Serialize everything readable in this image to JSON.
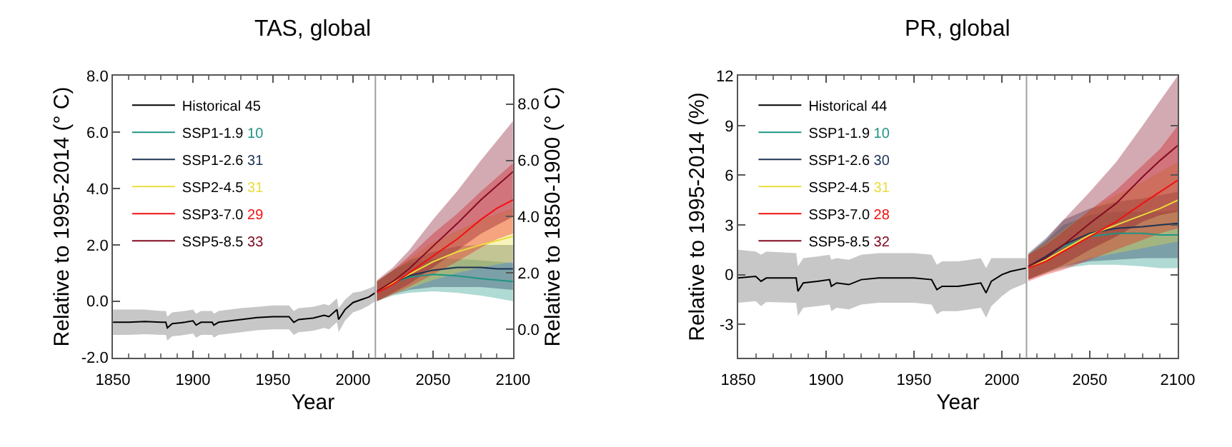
{
  "chart_data": [
    {
      "type": "line",
      "title": "TAS, global",
      "xlabel": "Year",
      "ylabel": "Relative to 1995-2014 (° C)",
      "y2label": "Relative to 1850-1900 (° C)",
      "xlim": [
        1850,
        2100
      ],
      "xticks": [
        1850,
        1900,
        1950,
        2000,
        2050,
        2100
      ],
      "ylim": [
        -2.0,
        8.0
      ],
      "yticks": [
        {
          "value": -2,
          "label": "-2.0"
        },
        {
          "value": 0,
          "label": "0.0"
        },
        {
          "value": 2,
          "label": "2.0"
        },
        {
          "value": 4,
          "label": "4.0"
        },
        {
          "value": 6,
          "label": "6.0"
        },
        {
          "value": 8,
          "label": "8.0"
        }
      ],
      "y2lim": [
        -1.0,
        9.0
      ],
      "y2ticks": [
        {
          "value": 0,
          "label": "0.0"
        },
        {
          "value": 2,
          "label": "2.0"
        },
        {
          "value": 4,
          "label": "4.0"
        },
        {
          "value": 6,
          "label": "6.0"
        },
        {
          "value": 8,
          "label": "8.0"
        }
      ],
      "legend": "top left",
      "annotations": [
        "45",
        "10",
        "31",
        "31",
        "29",
        "33"
      ],
      "ref_lines": [
        {
          "axis": "x",
          "value": 2014,
          "color": "#a0a0a0"
        }
      ],
      "series": [
        {
          "name": "Historical",
          "color": "#000000",
          "x": [
            1850,
            1860,
            1870,
            1880,
            1883,
            1884,
            1887,
            1895,
            1900,
            1902,
            1905,
            1912,
            1913,
            1916,
            1930,
            1940,
            1950,
            1960,
            1963,
            1966,
            1975,
            1982,
            1985,
            1990,
            1991,
            1995,
            2000,
            2005,
            2010,
            2014
          ],
          "values": [
            -0.75,
            -0.75,
            -0.72,
            -0.75,
            -0.75,
            -0.95,
            -0.8,
            -0.75,
            -0.7,
            -0.85,
            -0.75,
            -0.75,
            -0.85,
            -0.75,
            -0.65,
            -0.58,
            -0.55,
            -0.55,
            -0.75,
            -0.65,
            -0.6,
            -0.5,
            -0.55,
            -0.3,
            -0.65,
            -0.3,
            -0.05,
            0.05,
            0.15,
            0.3
          ],
          "lower": [
            -1.2,
            -1.2,
            -1.17,
            -1.2,
            -1.2,
            -1.4,
            -1.25,
            -1.2,
            -1.15,
            -1.3,
            -1.2,
            -1.2,
            -1.3,
            -1.2,
            -1.1,
            -1.03,
            -1.0,
            -1.0,
            -1.2,
            -1.1,
            -1.05,
            -0.95,
            -1.0,
            -0.75,
            -1.1,
            -0.7,
            -0.4,
            -0.3,
            -0.15,
            0.0
          ],
          "upper": [
            -0.3,
            -0.3,
            -0.3,
            -0.35,
            -0.35,
            -0.55,
            -0.4,
            -0.35,
            -0.3,
            -0.45,
            -0.35,
            -0.35,
            -0.45,
            -0.35,
            -0.25,
            -0.2,
            -0.15,
            -0.15,
            -0.35,
            -0.25,
            -0.2,
            -0.1,
            -0.15,
            0.1,
            -0.25,
            0.05,
            0.3,
            0.35,
            0.45,
            0.55
          ]
        },
        {
          "name": "SSP1-1.9",
          "color": "#1e9583",
          "x": [
            2015,
            2025,
            2035,
            2050,
            2065,
            2080,
            2090,
            2100
          ],
          "values": [
            0.35,
            0.65,
            0.85,
            0.95,
            0.9,
            0.8,
            0.75,
            0.7
          ],
          "lower": [
            0.0,
            0.2,
            0.3,
            0.35,
            0.3,
            0.2,
            0.1,
            0.0
          ],
          "upper": [
            0.7,
            1.1,
            1.35,
            1.5,
            1.5,
            1.45,
            1.4,
            1.35
          ]
        },
        {
          "name": "SSP1-2.6",
          "color": "#1d3354",
          "x": [
            2015,
            2025,
            2035,
            2050,
            2065,
            2080,
            2090,
            2100
          ],
          "values": [
            0.35,
            0.65,
            0.9,
            1.1,
            1.2,
            1.2,
            1.15,
            1.15
          ],
          "lower": [
            0.0,
            0.25,
            0.4,
            0.5,
            0.5,
            0.5,
            0.45,
            0.4
          ],
          "upper": [
            0.7,
            1.1,
            1.45,
            1.75,
            1.95,
            2.0,
            2.0,
            2.0
          ]
        },
        {
          "name": "SSP2-4.5",
          "color": "#eadd3d",
          "x": [
            2015,
            2025,
            2035,
            2050,
            2065,
            2080,
            2090,
            2100
          ],
          "values": [
            0.35,
            0.65,
            0.95,
            1.4,
            1.75,
            2.0,
            2.15,
            2.3
          ],
          "lower": [
            0.0,
            0.25,
            0.45,
            0.75,
            1.0,
            1.2,
            1.3,
            1.4
          ],
          "upper": [
            0.7,
            1.1,
            1.5,
            2.1,
            2.5,
            2.9,
            3.1,
            3.3
          ]
        },
        {
          "name": "SSP3-7.0",
          "color": "#f21111",
          "x": [
            2015,
            2025,
            2035,
            2050,
            2065,
            2080,
            2090,
            2100
          ],
          "values": [
            0.3,
            0.6,
            1.0,
            1.6,
            2.2,
            2.9,
            3.3,
            3.6
          ],
          "lower": [
            0.0,
            0.25,
            0.5,
            0.95,
            1.4,
            1.9,
            2.2,
            2.4
          ],
          "upper": [
            0.7,
            1.1,
            1.6,
            2.4,
            3.1,
            3.9,
            4.4,
            4.9
          ]
        },
        {
          "name": "SSP5-8.5",
          "color": "#840b22",
          "x": [
            2015,
            2025,
            2035,
            2050,
            2065,
            2080,
            2090,
            2100
          ],
          "values": [
            0.35,
            0.7,
            1.15,
            1.95,
            2.75,
            3.6,
            4.1,
            4.6
          ],
          "lower": [
            0.0,
            0.3,
            0.6,
            1.2,
            1.8,
            2.4,
            2.7,
            3.0
          ],
          "upper": [
            0.75,
            1.2,
            1.8,
            2.9,
            3.9,
            5.0,
            5.7,
            6.4
          ]
        }
      ]
    },
    {
      "type": "line",
      "title": "PR, global",
      "xlabel": "Year",
      "ylabel": "Relative to 1995-2014 (%)",
      "xlim": [
        1850,
        2100
      ],
      "xticks": [
        1850,
        1900,
        1950,
        2000,
        2050,
        2100
      ],
      "ylim": [
        -5,
        12
      ],
      "yticks": [
        -3,
        0,
        3,
        6,
        9,
        12
      ],
      "legend": "top left",
      "annotations": [
        "44",
        "10",
        "30",
        "31",
        "28",
        "32"
      ],
      "ref_lines": [
        {
          "axis": "x",
          "value": 2014,
          "color": "#a0a0a0"
        }
      ],
      "series": [
        {
          "name": "Historical",
          "color": "#000000",
          "x": [
            1850,
            1860,
            1863,
            1866,
            1883,
            1884,
            1887,
            1895,
            1902,
            1903,
            1906,
            1913,
            1920,
            1930,
            1950,
            1960,
            1963,
            1966,
            1975,
            1982,
            1988,
            1991,
            1994,
            2000,
            2005,
            2014
          ],
          "values": [
            -0.2,
            -0.1,
            -0.4,
            -0.2,
            -0.2,
            -1.0,
            -0.5,
            -0.4,
            -0.3,
            -0.7,
            -0.5,
            -0.6,
            -0.3,
            -0.2,
            -0.2,
            -0.3,
            -0.9,
            -0.7,
            -0.7,
            -0.6,
            -0.5,
            -1.1,
            -0.4,
            0.0,
            0.2,
            0.4
          ],
          "lower": [
            -1.7,
            -1.6,
            -1.9,
            -1.65,
            -1.7,
            -2.5,
            -2.0,
            -1.9,
            -1.8,
            -2.2,
            -2.0,
            -2.1,
            -1.8,
            -1.7,
            -1.7,
            -1.8,
            -2.4,
            -2.2,
            -2.2,
            -2.1,
            -2.0,
            -2.6,
            -1.9,
            -1.3,
            -0.9,
            -0.5
          ],
          "upper": [
            1.5,
            1.4,
            1.2,
            1.4,
            1.3,
            0.5,
            1.0,
            1.1,
            1.2,
            0.9,
            1.0,
            0.9,
            1.2,
            1.3,
            1.3,
            1.2,
            0.6,
            0.8,
            0.8,
            0.9,
            1.0,
            0.4,
            1.0,
            1.0,
            1.0,
            1.0
          ]
        },
        {
          "name": "SSP1-1.9",
          "color": "#1e9583",
          "x": [
            2015,
            2025,
            2035,
            2050,
            2065,
            2080,
            2090,
            2100
          ],
          "values": [
            0.4,
            1.0,
            1.7,
            2.3,
            2.5,
            2.5,
            2.4,
            2.4
          ],
          "lower": [
            -0.3,
            0.1,
            0.4,
            0.6,
            0.6,
            0.5,
            0.4,
            0.4
          ],
          "upper": [
            1.2,
            2.0,
            3.0,
            3.6,
            3.8,
            3.8,
            3.8,
            3.9
          ]
        },
        {
          "name": "SSP1-2.6",
          "color": "#1d3354",
          "x": [
            2015,
            2025,
            2035,
            2050,
            2065,
            2080,
            2090,
            2100
          ],
          "values": [
            0.5,
            1.1,
            1.8,
            2.5,
            2.8,
            2.9,
            3.0,
            3.1
          ],
          "lower": [
            -0.3,
            0.2,
            0.5,
            0.8,
            0.9,
            1.0,
            1.0,
            1.0
          ],
          "upper": [
            1.3,
            2.2,
            3.3,
            4.0,
            4.4,
            4.6,
            4.8,
            5.0
          ]
        },
        {
          "name": "SSP2-4.5",
          "color": "#eadd3d",
          "x": [
            2015,
            2025,
            2035,
            2050,
            2065,
            2080,
            2090,
            2100
          ],
          "values": [
            0.4,
            0.9,
            1.5,
            2.4,
            3.0,
            3.6,
            4.0,
            4.5
          ],
          "lower": [
            -0.3,
            0.1,
            0.5,
            1.0,
            1.3,
            1.6,
            1.8,
            2.0
          ],
          "upper": [
            1.2,
            1.9,
            2.7,
            3.9,
            4.8,
            5.6,
            6.2,
            6.8
          ]
        },
        {
          "name": "SSP3-7.0",
          "color": "#f21111",
          "x": [
            2015,
            2025,
            2035,
            2050,
            2065,
            2080,
            2090,
            2100
          ],
          "values": [
            0.4,
            0.8,
            1.4,
            2.3,
            3.2,
            4.3,
            5.0,
            5.7
          ],
          "lower": [
            -0.4,
            0.0,
            0.3,
            0.9,
            1.5,
            2.1,
            2.5,
            2.8
          ],
          "upper": [
            1.2,
            1.8,
            2.6,
            3.9,
            5.1,
            6.6,
            7.6,
            9.0
          ]
        },
        {
          "name": "SSP5-8.5",
          "color": "#840b22",
          "x": [
            2015,
            2025,
            2035,
            2050,
            2065,
            2080,
            2090,
            2100
          ],
          "values": [
            0.5,
            1.0,
            1.8,
            3.1,
            4.3,
            5.9,
            6.9,
            7.8
          ],
          "lower": [
            -0.3,
            0.1,
            0.6,
            1.5,
            2.3,
            3.2,
            3.6,
            3.8
          ],
          "upper": [
            1.2,
            2.1,
            3.3,
            5.0,
            6.8,
            9.0,
            10.5,
            12.0
          ]
        }
      ]
    }
  ]
}
